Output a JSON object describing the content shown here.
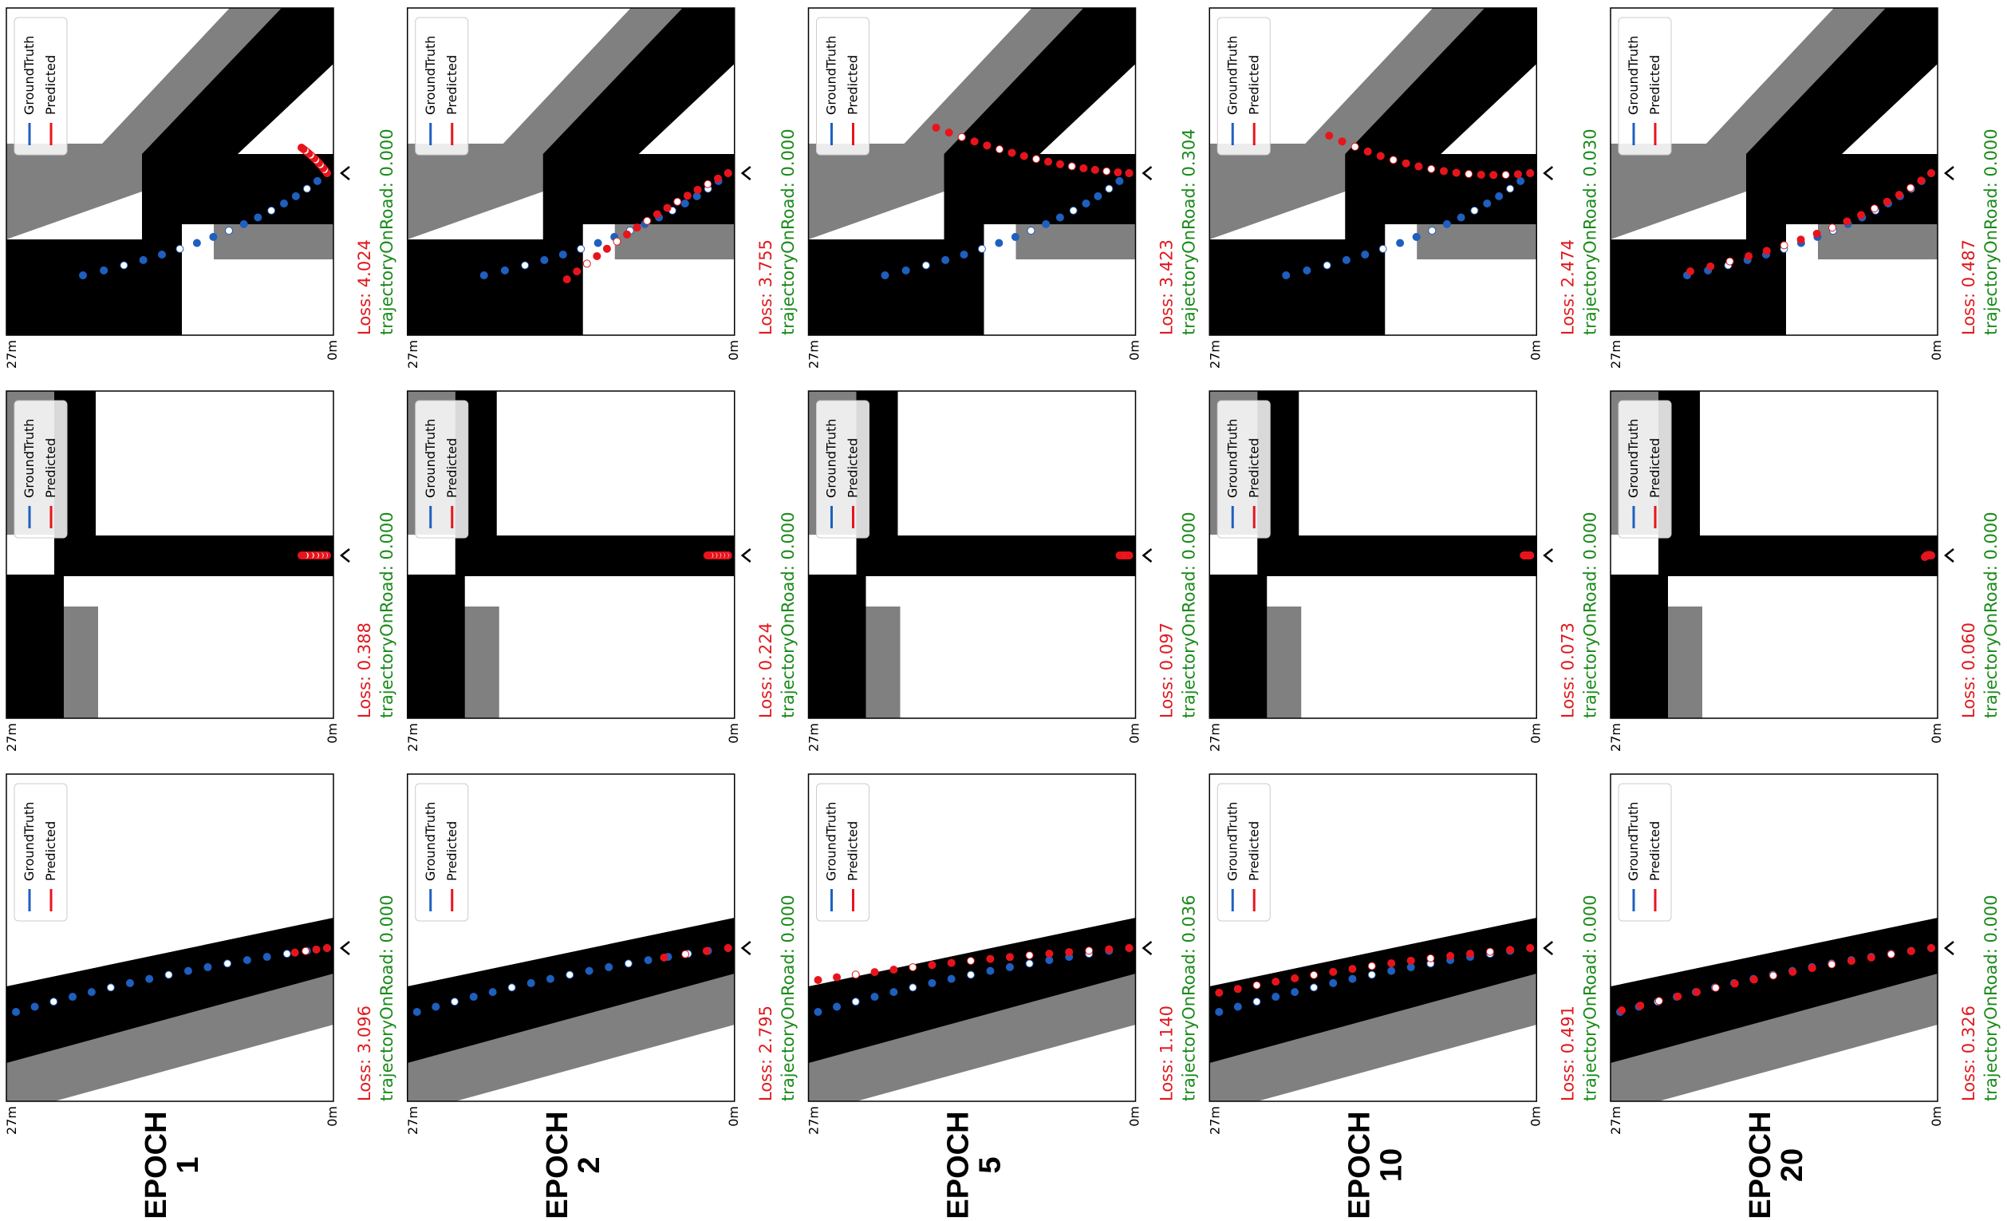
{
  "legend": [
    "GroundTruth",
    "Predicted"
  ],
  "scale": {
    "far": "27m",
    "near": "0m"
  },
  "rows": [
    {
      "epoch_word": "EPOCH",
      "epoch": "1",
      "panels": [
        {
          "loss": "Loss: 3.096",
          "on_road": "trajectoryOnRoad: 0.000"
        },
        {
          "loss": "Loss: 0.388",
          "on_road": "trajectoryOnRoad: 0.000"
        },
        {
          "loss": "Loss: 4.024",
          "on_road": "trajectoryOnRoad: 0.000"
        }
      ]
    },
    {
      "epoch_word": "EPOCH",
      "epoch": "2",
      "panels": [
        {
          "loss": "Loss: 2.795",
          "on_road": "trajectoryOnRoad: 0.000"
        },
        {
          "loss": "Loss: 0.224",
          "on_road": "trajectoryOnRoad: 0.000"
        },
        {
          "loss": "Loss: 3.755",
          "on_road": "trajectoryOnRoad: 0.000"
        }
      ]
    },
    {
      "epoch_word": "EPOCH",
      "epoch": "5",
      "panels": [
        {
          "loss": "Loss: 1.140",
          "on_road": "trajectoryOnRoad: 0.036"
        },
        {
          "loss": "Loss: 0.097",
          "on_road": "trajectoryOnRoad: 0.000"
        },
        {
          "loss": "Loss: 3.423",
          "on_road": "trajectoryOnRoad: 0.304"
        }
      ]
    },
    {
      "epoch_word": "EPOCH",
      "epoch": "10",
      "panels": [
        {
          "loss": "Loss: 0.491",
          "on_road": "trajectoryOnRoad: 0.000"
        },
        {
          "loss": "Loss: 0.073",
          "on_road": "trajectoryOnRoad: 0.000"
        },
        {
          "loss": "Loss: 2.474",
          "on_road": "trajectoryOnRoad: 0.030"
        }
      ]
    },
    {
      "epoch_word": "EPOCH",
      "epoch": "20",
      "panels": [
        {
          "loss": "Loss: 0.326",
          "on_road": "trajectoryOnRoad: 0.000"
        },
        {
          "loss": "Loss: 0.060",
          "on_road": "trajectoryOnRoad: 0.000"
        },
        {
          "loss": "Loss: 0.487",
          "on_road": "trajectoryOnRoad: 0.000"
        }
      ]
    }
  ]
}
